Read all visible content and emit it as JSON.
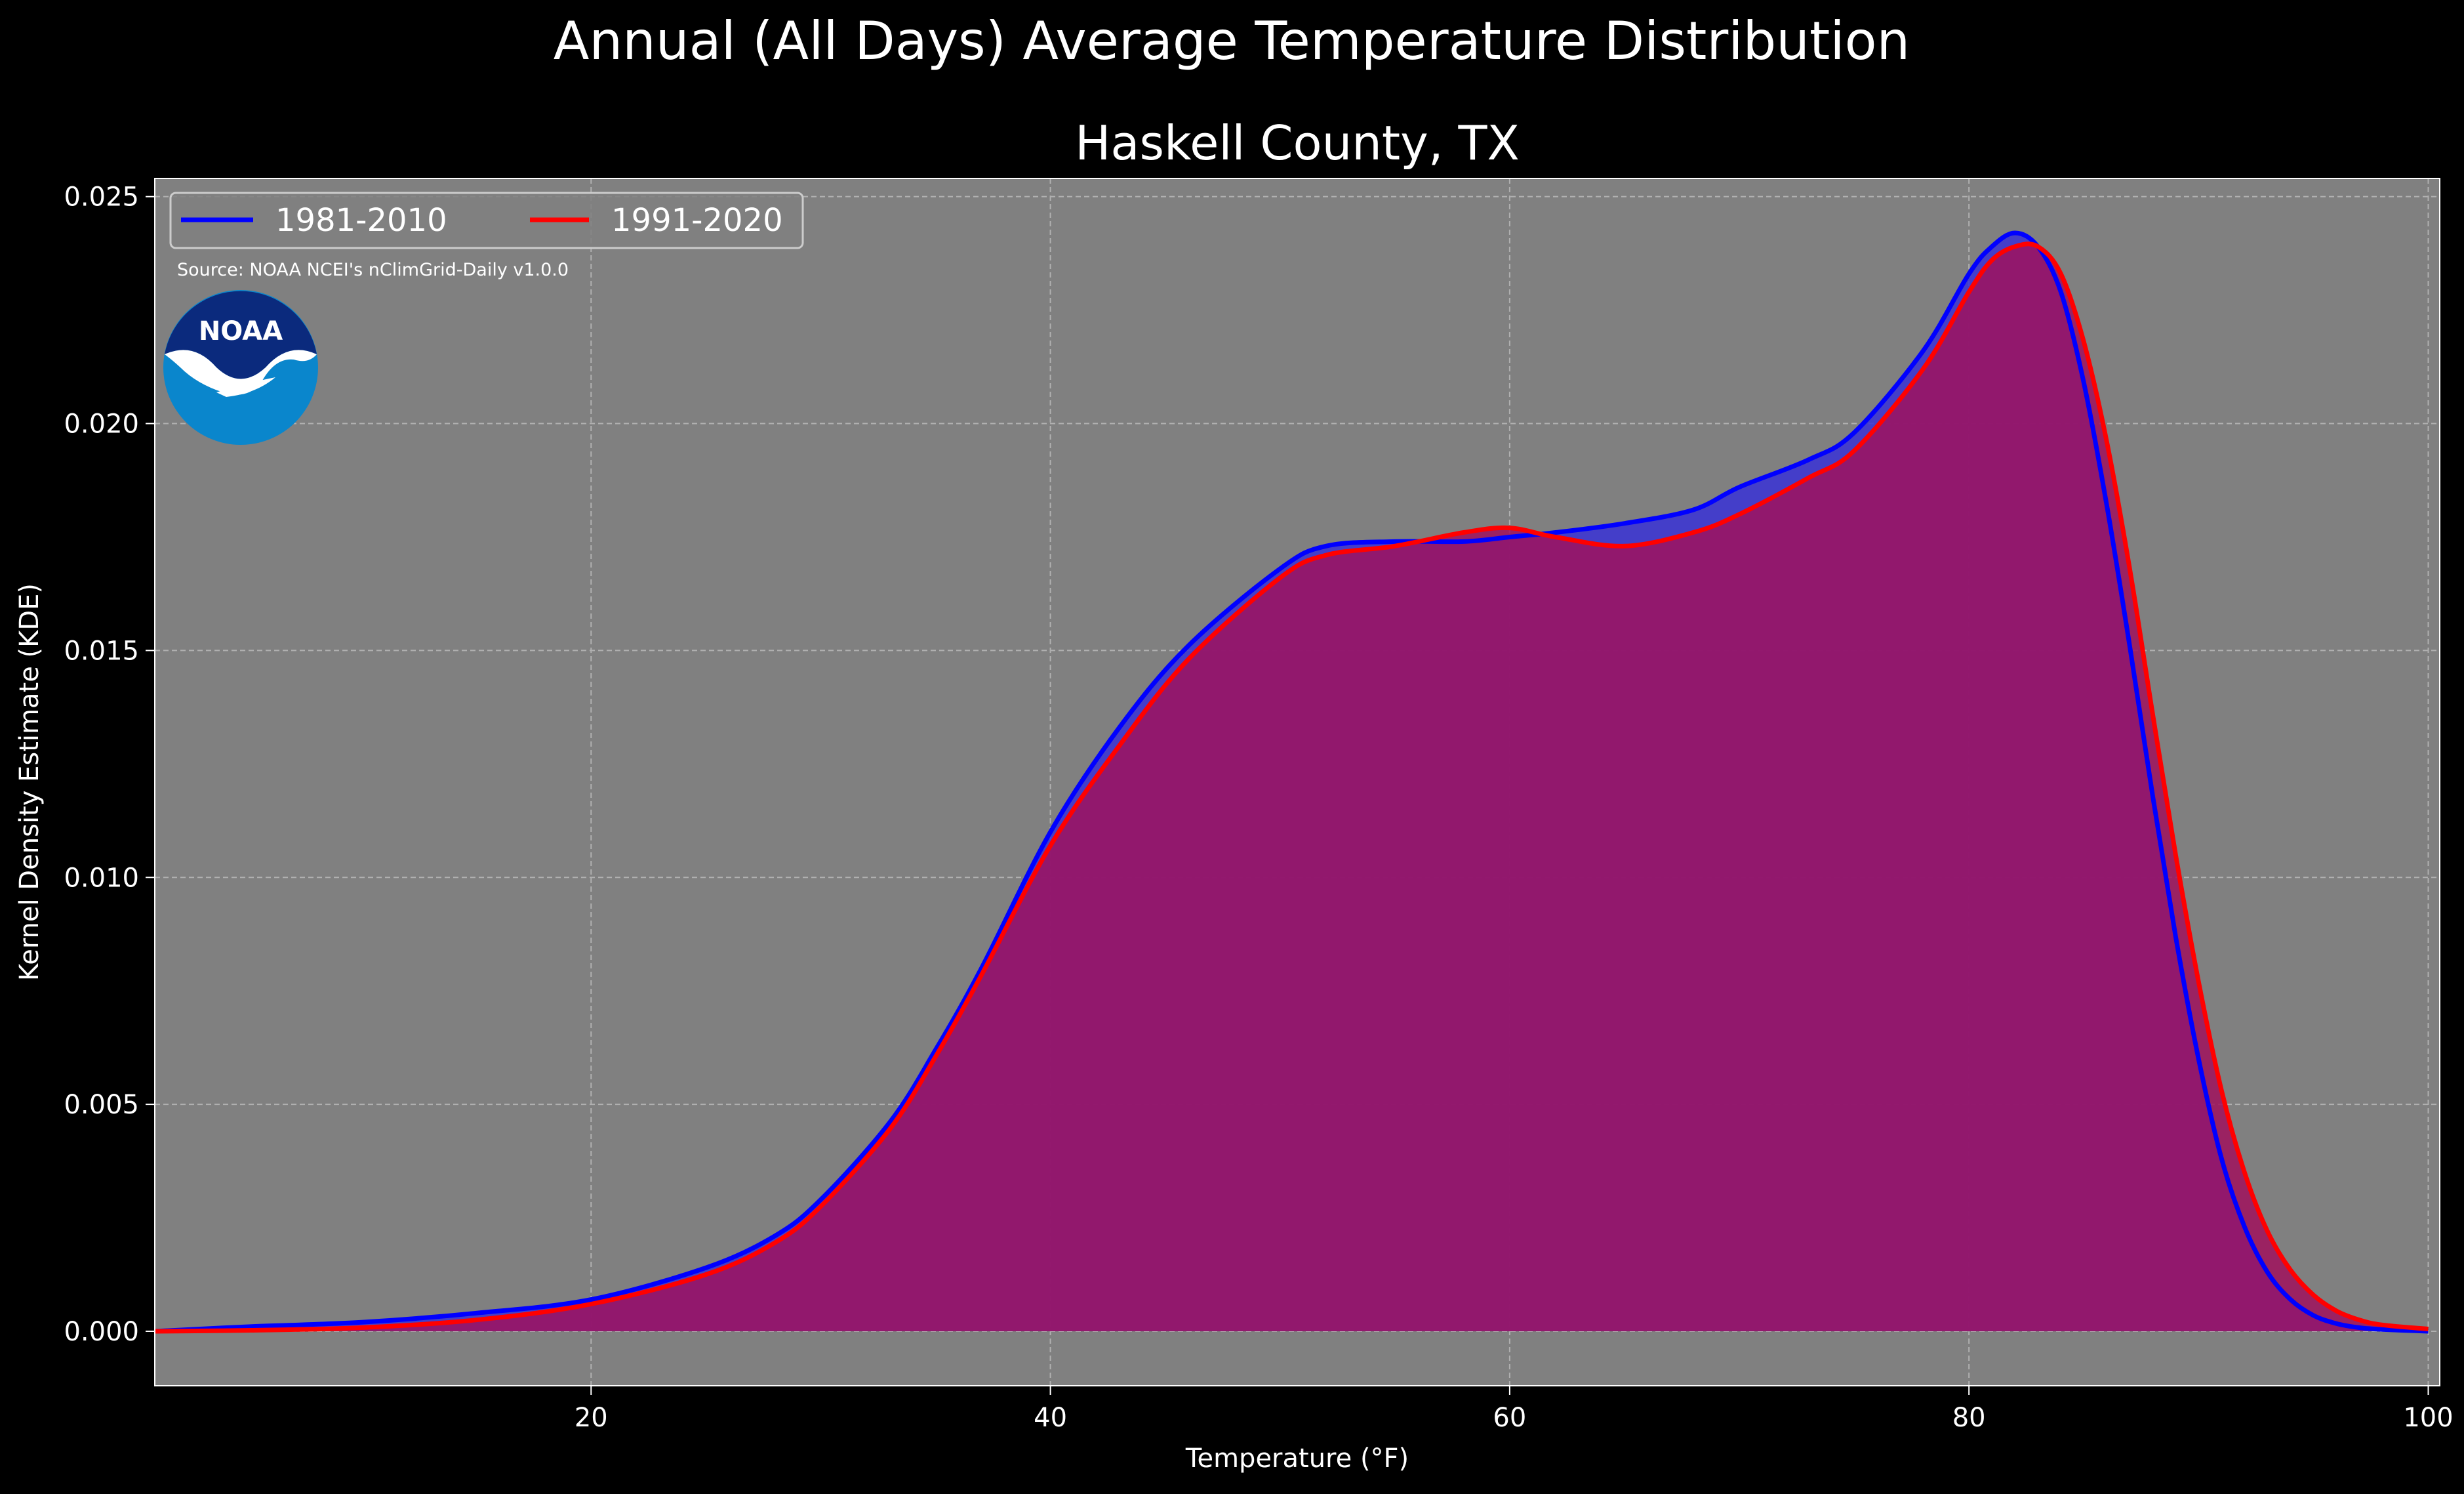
{
  "chart_data": {
    "type": "area",
    "suptitle": "Annual (All Days) Average Temperature Distribution",
    "title": "Haskell County, TX",
    "xlabel": "Temperature (°F)",
    "ylabel": "Kernel Density Estimate (KDE)",
    "xlim": [
      1,
      100.5
    ],
    "ylim": [
      -0.0012,
      0.0254
    ],
    "xticks": [
      20,
      40,
      60,
      80,
      100
    ],
    "yticks": [
      0.0,
      0.005,
      0.01,
      0.015,
      0.02,
      0.025
    ],
    "ytick_labels": [
      "0.000",
      "0.005",
      "0.010",
      "0.015",
      "0.020",
      "0.025"
    ],
    "grid": true,
    "legend_position": "upper-left",
    "background_color": "#808080",
    "source_note": "Source: NOAA NCEI's nClimGrid-Daily v1.0.0",
    "logo_text": "NOAA",
    "series": [
      {
        "name": "1981-2010",
        "color": "#0000ff",
        "fill_color": "#3a33d6",
        "x": [
          1,
          5,
          10,
          15,
          20,
          25,
          28,
          30,
          33,
          35,
          37,
          40,
          43,
          46,
          50,
          52,
          55,
          58,
          60,
          62,
          65,
          68,
          70,
          73,
          75,
          78,
          80,
          81,
          82,
          83,
          84,
          85,
          86,
          87,
          88,
          89,
          90,
          91,
          92,
          93,
          94,
          95,
          96,
          97,
          98,
          100
        ],
        "y": [
          0.0,
          0.0001,
          0.0002,
          0.0004,
          0.0007,
          0.0014,
          0.0021,
          0.0029,
          0.0046,
          0.0062,
          0.008,
          0.011,
          0.0133,
          0.0151,
          0.0168,
          0.0173,
          0.0174,
          0.0174,
          0.0175,
          0.0176,
          0.0178,
          0.0181,
          0.0186,
          0.0192,
          0.0198,
          0.0216,
          0.0233,
          0.0239,
          0.0242,
          0.0239,
          0.0229,
          0.0209,
          0.0182,
          0.0151,
          0.0118,
          0.0087,
          0.006,
          0.0038,
          0.0023,
          0.0013,
          0.0007,
          0.00035,
          0.00017,
          8e-05,
          4e-05,
          0.0
        ]
      },
      {
        "name": "1991-2020",
        "color": "#ff0000",
        "fill_color": "#a0125d",
        "x": [
          1,
          5,
          10,
          15,
          20,
          25,
          28,
          30,
          33,
          35,
          37,
          40,
          43,
          46,
          50,
          52,
          55,
          58,
          60,
          62,
          65,
          68,
          70,
          73,
          75,
          78,
          80,
          81,
          82,
          83,
          84,
          85,
          86,
          87,
          88,
          89,
          90,
          91,
          92,
          93,
          94,
          95,
          96,
          97,
          98,
          100
        ],
        "y": [
          0.0,
          2e-05,
          8e-05,
          0.00025,
          0.0006,
          0.00125,
          0.00195,
          0.00275,
          0.00445,
          0.00605,
          0.00785,
          0.0107,
          0.0129,
          0.0148,
          0.0166,
          0.0171,
          0.0173,
          0.0176,
          0.0177,
          0.0175,
          0.0173,
          0.0176,
          0.018,
          0.0188,
          0.0194,
          0.0212,
          0.0229,
          0.0236,
          0.0239,
          0.0239,
          0.0233,
          0.0218,
          0.0196,
          0.0168,
          0.0136,
          0.0105,
          0.0077,
          0.0053,
          0.0035,
          0.0022,
          0.00135,
          0.0008,
          0.00045,
          0.00025,
          0.00014,
          5e-05
        ]
      }
    ]
  }
}
